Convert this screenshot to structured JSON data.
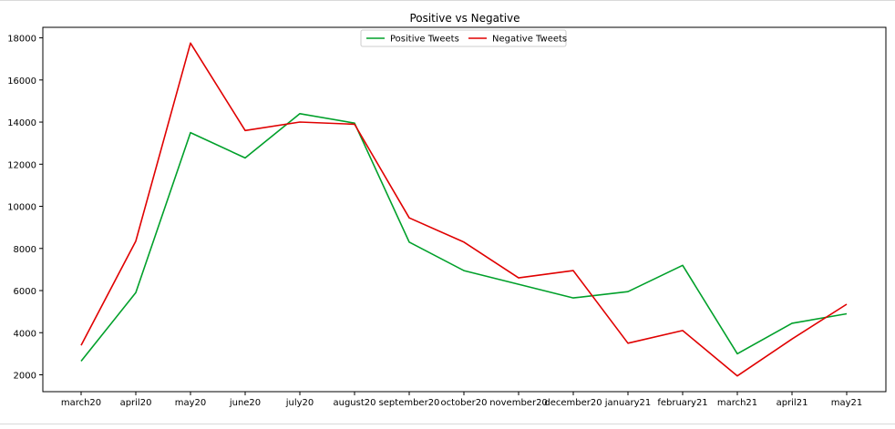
{
  "chart_data": {
    "type": "line",
    "title": "Positive vs Negative",
    "xlabel": "",
    "ylabel": "",
    "categories": [
      "march20",
      "april20",
      "may20",
      "june20",
      "july20",
      "august20",
      "september20",
      "october20",
      "november20",
      "december20",
      "january21",
      "february21",
      "march21",
      "april21",
      "may21"
    ],
    "series": [
      {
        "name": "Positive Tweets",
        "color": "#00a02a",
        "values": [
          2650,
          5900,
          13500,
          12300,
          14400,
          13950,
          8300,
          6950,
          6300,
          5650,
          5950,
          7200,
          3000,
          4450,
          4900
        ]
      },
      {
        "name": "Negative Tweets",
        "color": "#e00000",
        "values": [
          3400,
          8350,
          17750,
          13600,
          14000,
          13900,
          9450,
          8300,
          6600,
          6950,
          3500,
          4100,
          1950,
          3700,
          5350
        ]
      }
    ],
    "yticks": [
      2000,
      4000,
      6000,
      8000,
      10000,
      12000,
      14000,
      16000,
      18000
    ],
    "ylim": [
      1200,
      18500
    ],
    "grid": false,
    "legend_position": "top-center"
  }
}
